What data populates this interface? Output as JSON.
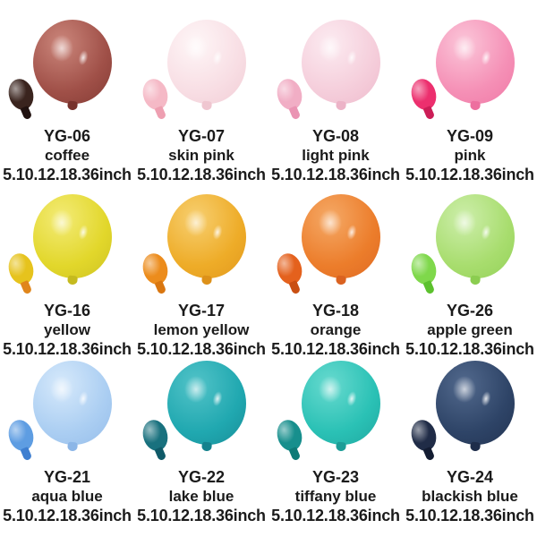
{
  "page": {
    "background": "#ffffff",
    "text_color": "#1b1b1b",
    "grid": {
      "columns": 4,
      "rows": 3
    }
  },
  "cells": [
    {
      "code": "YG-06",
      "name": "coffee",
      "sizes": "5.10.12.18.36inch",
      "colors": {
        "main": "#a05048",
        "hi": "#cb867b",
        "dark": "#78322c",
        "small": "#3a241e",
        "stem": "#211210"
      }
    },
    {
      "code": "YG-07",
      "name": "skin pink",
      "sizes": "5.10.12.18.36inch",
      "colors": {
        "main": "#f8dee4",
        "hi": "#fef6f7",
        "dark": "#efc6d0",
        "small": "#f5b9c6",
        "stem": "#ee9fb1"
      }
    },
    {
      "code": "YG-08",
      "name": "light pink",
      "sizes": "5.10.12.18.36inch",
      "colors": {
        "main": "#f5cedb",
        "hi": "#fcebf1",
        "dark": "#ecb3c7",
        "small": "#f1aec5",
        "stem": "#ea94b3"
      }
    },
    {
      "code": "YG-09",
      "name": "pink",
      "sizes": "5.10.12.18.36inch",
      "colors": {
        "main": "#f590b6",
        "hi": "#fbc6d9",
        "dark": "#ed6f9f",
        "small": "#ec2f6e",
        "stem": "#cc1d57"
      }
    },
    {
      "code": "YG-16",
      "name": "yellow",
      "sizes": "5.10.12.18.36inch",
      "colors": {
        "main": "#e2d72b",
        "hi": "#f3eb76",
        "dark": "#c5ba1e",
        "small": "#e6c31d",
        "stem": "#e0861b"
      }
    },
    {
      "code": "YG-17",
      "name": "lemon yellow",
      "sizes": "5.10.12.18.36inch",
      "colors": {
        "main": "#eeac28",
        "hi": "#f7cf70",
        "dark": "#dd911a",
        "small": "#ec8c1c",
        "stem": "#d9760f"
      }
    },
    {
      "code": "YG-18",
      "name": "orange",
      "sizes": "5.10.12.18.36inch",
      "colors": {
        "main": "#ec7d2b",
        "hi": "#f5a966",
        "dark": "#da6220",
        "small": "#e4611d",
        "stem": "#c94f12"
      }
    },
    {
      "code": "YG-26",
      "name": "apple green",
      "sizes": "5.10.12.18.36inch",
      "colors": {
        "main": "#a8dd6e",
        "hi": "#cdeeab",
        "dark": "#8bcd50",
        "small": "#7fd84b",
        "stem": "#5cc12d"
      }
    },
    {
      "code": "YG-21",
      "name": "aqua blue",
      "sizes": "5.10.12.18.36inch",
      "colors": {
        "main": "#abcef2",
        "hi": "#d6e9fb",
        "dark": "#8cb6e7",
        "small": "#5e9de2",
        "stem": "#3f7fd0"
      }
    },
    {
      "code": "YG-22",
      "name": "lake blue",
      "sizes": "5.10.12.18.36inch",
      "colors": {
        "main": "#20a8b0",
        "hi": "#52c3c8",
        "dark": "#15828d",
        "small": "#19717e",
        "stem": "#0f5a68"
      }
    },
    {
      "code": "YG-23",
      "name": "tiffany blue",
      "sizes": "5.10.12.18.36inch",
      "colors": {
        "main": "#2ac1b5",
        "hi": "#68dacf",
        "dark": "#1c9d97",
        "small": "#178f8d",
        "stem": "#0f7a77"
      }
    },
    {
      "code": "YG-24",
      "name": "blackish blue",
      "sizes": "5.10.12.18.36inch",
      "colors": {
        "main": "#2e4467",
        "hi": "#52698d",
        "dark": "#1e2d4a",
        "small": "#202c47",
        "stem": "#131c32"
      }
    }
  ]
}
